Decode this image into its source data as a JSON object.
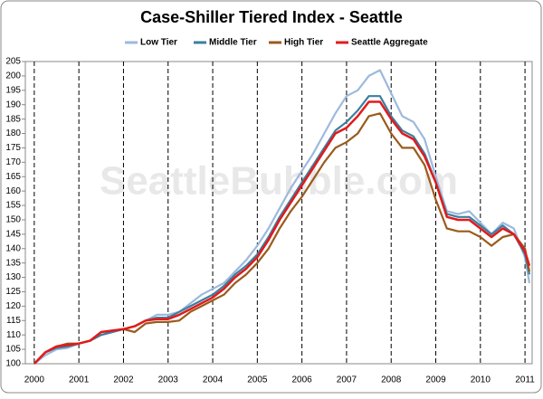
{
  "chart_data": {
    "type": "line",
    "title": "Case-Shiller Tiered Index - Seattle",
    "watermark": "SeattleBubble.com",
    "x": [
      2000,
      2000.25,
      2000.5,
      2000.75,
      2001,
      2001.25,
      2001.5,
      2001.75,
      2002,
      2002.25,
      2002.5,
      2002.75,
      2003,
      2003.25,
      2003.5,
      2003.75,
      2004,
      2004.25,
      2004.5,
      2004.75,
      2005,
      2005.25,
      2005.5,
      2005.75,
      2006,
      2006.25,
      2006.5,
      2006.75,
      2007,
      2007.25,
      2007.5,
      2007.75,
      2008,
      2008.25,
      2008.5,
      2008.75,
      2009,
      2009.25,
      2009.5,
      2009.75,
      2010,
      2010.25,
      2010.5,
      2010.75,
      2011,
      2011.1
    ],
    "series": [
      {
        "name": "Low Tier",
        "color": "#9db9dc",
        "values": [
          100,
          103,
          105,
          105.5,
          107,
          108,
          110,
          111,
          112,
          113,
          115,
          117,
          117,
          118,
          121,
          124,
          126,
          128,
          132,
          136,
          141,
          147,
          154,
          161,
          167,
          173,
          180,
          187,
          193,
          195,
          200,
          202,
          194,
          186,
          184,
          178,
          165,
          153,
          152,
          153,
          149,
          145,
          149,
          147,
          137,
          128
        ]
      },
      {
        "name": "Middle Tier",
        "color": "#3b7f9f",
        "values": [
          100,
          104,
          105.5,
          106,
          107,
          108,
          110,
          111,
          112,
          113,
          115,
          116,
          116,
          118,
          120,
          122,
          124,
          127,
          131,
          134,
          138,
          144,
          151,
          157,
          163,
          169,
          175,
          181,
          184,
          188,
          193,
          193,
          186,
          181,
          179,
          173,
          163,
          152,
          151,
          151,
          148,
          145,
          148,
          145,
          138,
          131
        ]
      },
      {
        "name": "High Tier",
        "color": "#9b5a1c",
        "values": [
          100,
          104,
          106,
          107,
          107,
          108,
          111,
          111.5,
          112,
          111,
          114,
          114.5,
          114.5,
          115,
          118,
          120,
          122,
          124,
          128,
          131,
          135,
          140,
          147,
          153,
          158,
          164,
          170,
          175,
          177,
          180,
          186,
          187,
          180,
          175,
          175,
          169,
          157,
          147,
          146,
          146,
          144,
          141,
          144,
          145,
          140,
          132
        ]
      },
      {
        "name": "Seattle Aggregate",
        "color": "#e3191c",
        "values": [
          100,
          104,
          106,
          106.5,
          107,
          108,
          111,
          111.5,
          112,
          113,
          115,
          115.5,
          115.5,
          117,
          119,
          121,
          123,
          126,
          130,
          133,
          137,
          143,
          150,
          156,
          162,
          168,
          174,
          180,
          182,
          186,
          191,
          191,
          185,
          180,
          178,
          172,
          163,
          151,
          150,
          150,
          147,
          144,
          147,
          145,
          139,
          134
        ]
      }
    ],
    "xlim": [
      1999.8,
      2011.16
    ],
    "xticks": [
      2000,
      2001,
      2002,
      2003,
      2004,
      2005,
      2006,
      2007,
      2008,
      2009,
      2010,
      2011
    ],
    "ylim": [
      100,
      205
    ],
    "yticks": [
      100,
      105,
      110,
      115,
      120,
      125,
      130,
      135,
      140,
      145,
      150,
      155,
      160,
      165,
      170,
      175,
      180,
      185,
      190,
      195,
      200,
      205
    ],
    "grid": true
  }
}
